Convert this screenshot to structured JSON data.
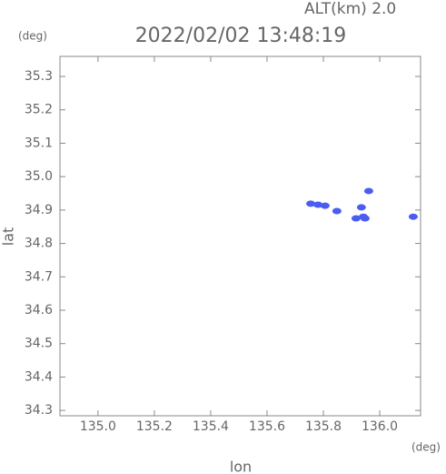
{
  "chart_data": {
    "type": "scatter",
    "title": "2022/02/02 13:48:19",
    "annotation": "ALT(km) 2.0",
    "y_unit": "(deg)",
    "x_unit": "(deg)",
    "x_label": "lon",
    "y_label": "lat",
    "color": "#4b5cf2",
    "x": [
      135.755,
      135.781,
      135.806,
      135.848,
      135.916,
      135.942,
      135.935,
      135.961,
      135.948,
      136.119
    ],
    "values": [
      34.919,
      34.916,
      34.913,
      34.897,
      34.875,
      34.88,
      34.908,
      34.957,
      34.875,
      34.88
    ],
    "xlim": [
      134.865,
      136.145
    ],
    "ylim": [
      34.284,
      35.36
    ],
    "xticks": [
      {
        "value": 135,
        "label": "135.0"
      },
      135.2,
      135.4,
      135.6,
      135.8,
      {
        "value": 136,
        "label": "136.0"
      }
    ],
    "yticks": [
      34.3,
      34.4,
      34.5,
      34.6,
      34.7,
      34.8,
      34.9,
      {
        "value": 35,
        "label": "35.0"
      },
      35.1,
      35.2,
      35.3
    ]
  }
}
